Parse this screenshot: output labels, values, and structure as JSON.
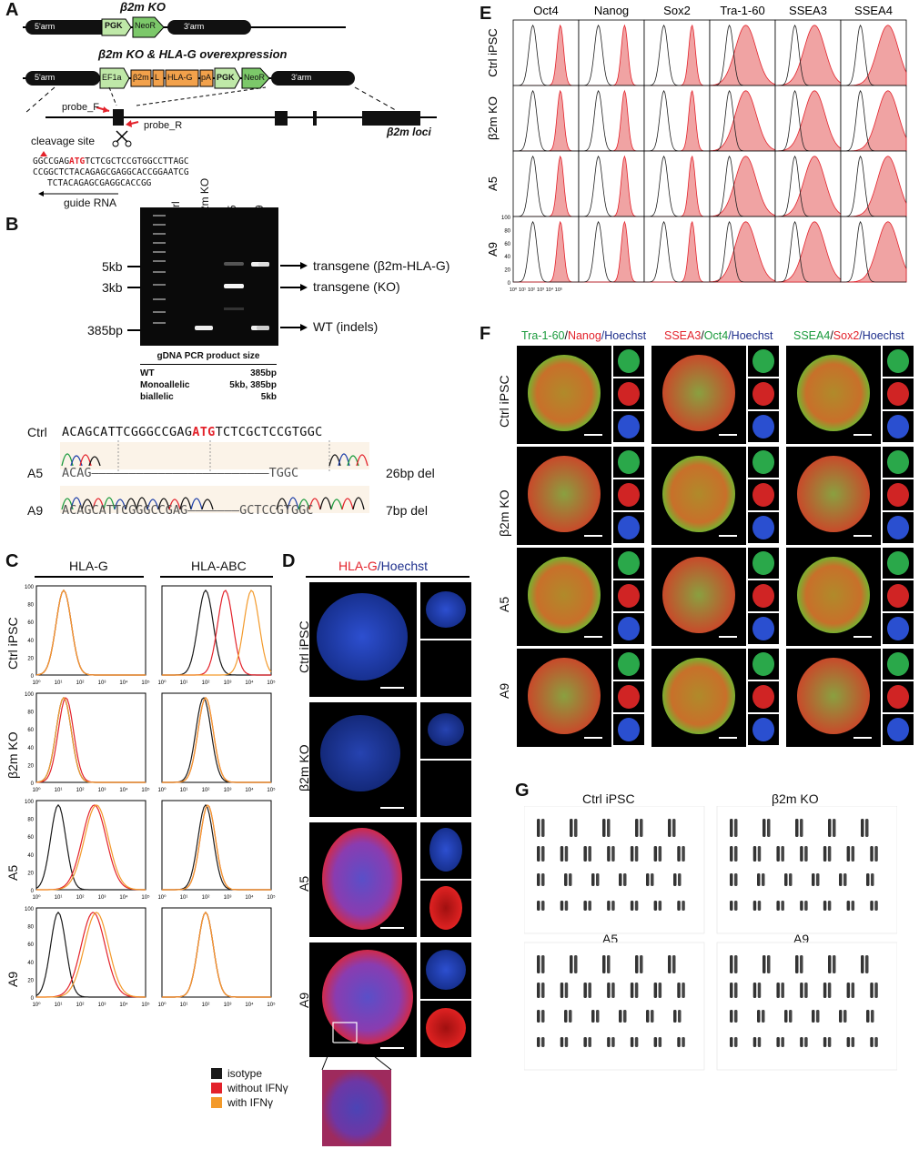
{
  "panels": {
    "A": "A",
    "B": "B",
    "C": "C",
    "D": "D",
    "E": "E",
    "F": "F",
    "G": "G"
  },
  "panelA": {
    "title1": "β2m KO",
    "title2": "β2m KO & HLA-G overexpression",
    "arm5": "5'arm",
    "arm3": "3'arm",
    "pgk": "PGK",
    "neo": "NeoR",
    "ef1a": "EF1a",
    "b2m": "β2m",
    "l": "L",
    "hlag": "HLA-G",
    "pa": "pA",
    "probeF": "probe_F",
    "probeR": "probe_R",
    "cleavage": "cleavage site",
    "loci": "β2m loci",
    "seq1a": "GGCCGAG",
    "seq1b": "ATG",
    "seq1c": "TCTCGCTCCGTGGCCTTAGC",
    "seq2": "CCGGCTCTACAGAGCGAGGCACCGGAATCG",
    "seq3": "TCTACAGAGCGAGGCACCGG",
    "guide": "guide RNA"
  },
  "panelB": {
    "lanes": [
      "Ctrl",
      "β2m KO",
      "A5",
      "A9"
    ],
    "sizes": [
      "5kb",
      "3kb",
      "385bp"
    ],
    "arrows": [
      "transgene (β2m-HLA-G)",
      "transgene (KO)",
      "WT (indels)"
    ],
    "table": {
      "header": "gDNA PCR product size",
      "rows": [
        [
          "WT",
          "385bp"
        ],
        [
          "Monoallelic",
          "5kb, 385bp"
        ],
        [
          "biallelic",
          "5kb"
        ]
      ]
    },
    "seq": {
      "ctrl_label": "Ctrl",
      "ctrl_a": "ACAGCATTCGGGCCGAG",
      "ctrl_b": "ATG",
      "ctrl_c": "TCTCGCTCCGTGGC",
      "a5_label": "A5",
      "a5_seq": "ACAG––––––––––––––––––––––––TGGC",
      "a5_note": "26bp del",
      "a9_label": "A9",
      "a9_seq": "ACAGCATTCGGGCCGAG–––––––GCTCCGTGGC",
      "a9_note": "7bp del"
    }
  },
  "panelC": {
    "cols": [
      "HLA-G",
      "HLA-ABC"
    ],
    "rows": [
      "Ctrl iPSC",
      "β2m KO",
      "A5",
      "A9"
    ],
    "legend": [
      {
        "label": "isotype",
        "color": "#1a1a1a"
      },
      {
        "label": "without IFNγ",
        "color": "#e3222b"
      },
      {
        "label": "with IFNγ",
        "color": "#f39a2b"
      }
    ],
    "yticks": [
      "0",
      "20",
      "40",
      "60",
      "80",
      "100"
    ],
    "xticks": [
      "10⁰",
      "10¹",
      "10²",
      "10³",
      "10⁴",
      "10⁵"
    ]
  },
  "panelD": {
    "title_a": "HLA-G",
    "title_b": "/Hoechst",
    "rows": [
      "Ctrl iPSC",
      "β2m KO",
      "A5",
      "A9"
    ]
  },
  "panelE": {
    "cols": [
      "Oct4",
      "Nanog",
      "Sox2",
      "Tra-1-60",
      "SSEA3",
      "SSEA4"
    ],
    "rows": [
      "Ctrl iPSC",
      "β2m KO",
      "A5",
      "A9"
    ],
    "yticks": [
      "0",
      "20",
      "40",
      "60",
      "80",
      "100"
    ],
    "xticks": [
      "10⁰",
      "10¹",
      "10²",
      "10³",
      "10⁴",
      "10⁵"
    ]
  },
  "panelF": {
    "titles": [
      [
        {
          "t": "Tra-1-60",
          "c": "#1a9a3c"
        },
        {
          "t": "/",
          "c": "#111"
        },
        {
          "t": "Nanog",
          "c": "#e3222b"
        },
        {
          "t": "/Hoechst",
          "c": "#1e2f8c"
        }
      ],
      [
        {
          "t": "SSEA3",
          "c": "#e3222b"
        },
        {
          "t": "/",
          "c": "#111"
        },
        {
          "t": "Oct4",
          "c": "#1a9a3c"
        },
        {
          "t": "/Hoechst",
          "c": "#1e2f8c"
        }
      ],
      [
        {
          "t": "SSEA4",
          "c": "#1a9a3c"
        },
        {
          "t": "/",
          "c": "#111"
        },
        {
          "t": "Sox2",
          "c": "#e3222b"
        },
        {
          "t": "/Hoechst",
          "c": "#1e2f8c"
        }
      ]
    ],
    "rows": [
      "Ctrl iPSC",
      "β2m KO",
      "A5",
      "A9"
    ]
  },
  "panelG": {
    "labels": [
      "Ctrl iPSC",
      "β2m KO",
      "A5",
      "A9"
    ]
  },
  "colors": {
    "red": "#e3222b",
    "orange": "#f39a2b",
    "blue": "#1e3fa8",
    "green": "#1a9a3c",
    "histfill": "#f0a3a3"
  }
}
